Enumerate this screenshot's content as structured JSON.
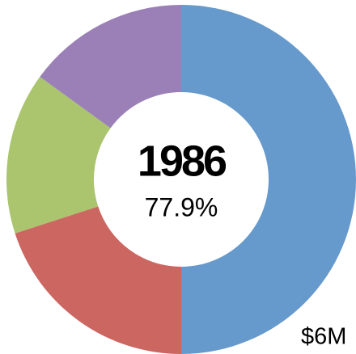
{
  "chart_data": {
    "type": "donut",
    "title": "1986",
    "subtitle": "77.9%",
    "annotation": "$6M",
    "categories": [
      null,
      null,
      null,
      null
    ],
    "values": [
      50,
      20,
      15,
      15
    ],
    "colors": [
      "#6699cc",
      "#cc6661",
      "#abc46e",
      "#9b80b7"
    ]
  }
}
